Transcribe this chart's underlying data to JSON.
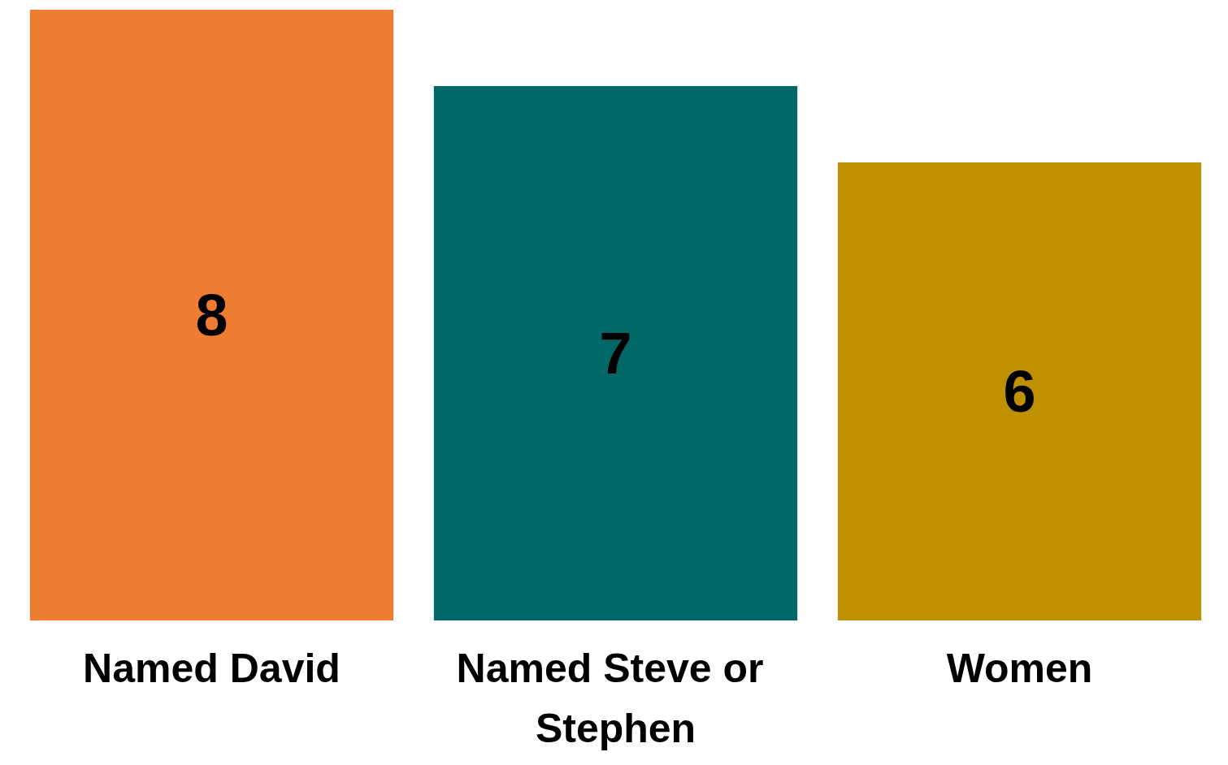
{
  "chart_data": {
    "type": "bar",
    "categories": [
      "Named David",
      "Named Steve or Stephen",
      "Women"
    ],
    "values": [
      8,
      7,
      6
    ],
    "colors": [
      "#ed7d31",
      "#026867",
      "#bf9000"
    ],
    "tick_labels": "x",
    "data_labels": true,
    "grid": false
  }
}
